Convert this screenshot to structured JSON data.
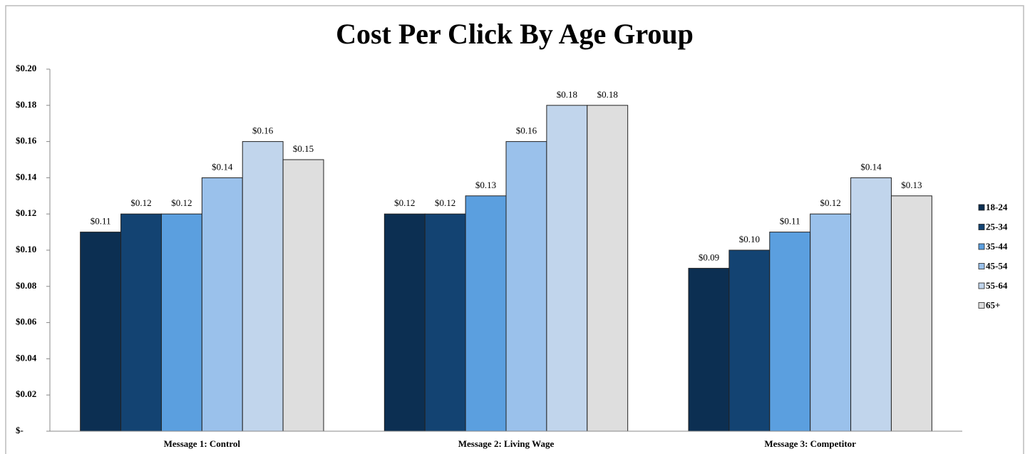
{
  "chart_data": {
    "type": "bar",
    "title": "Cost Per Click By Age Group",
    "categories": [
      "Message 1: Control",
      "Message 2: Living Wage",
      "Message 3: Competitor"
    ],
    "series": [
      {
        "name": "18-24",
        "color": "#0c2f52",
        "values": [
          0.11,
          0.12,
          0.09
        ],
        "value_labels": [
          "$0.11",
          "$0.12",
          "$0.09"
        ]
      },
      {
        "name": "25-34",
        "color": "#134372",
        "values": [
          0.12,
          0.12,
          0.1
        ],
        "value_labels": [
          "$0.12",
          "$0.12",
          "$0.10"
        ]
      },
      {
        "name": "35-44",
        "color": "#5b9fdf",
        "values": [
          0.12,
          0.13,
          0.11
        ],
        "value_labels": [
          "$0.12",
          "$0.13",
          "$0.11"
        ]
      },
      {
        "name": "45-54",
        "color": "#9ac1eb",
        "values": [
          0.14,
          0.16,
          0.12
        ],
        "value_labels": [
          "$0.14",
          "$0.16",
          "$0.12"
        ]
      },
      {
        "name": "55-64",
        "color": "#c1d5ec",
        "values": [
          0.16,
          0.18,
          0.14
        ],
        "value_labels": [
          "$0.16",
          "$0.18",
          "$0.14"
        ]
      },
      {
        "name": "65+",
        "color": "#dedede",
        "values": [
          0.15,
          0.18,
          0.13
        ],
        "value_labels": [
          "$0.15",
          "$0.18",
          "$0.13"
        ]
      }
    ],
    "ylim": [
      0,
      0.2
    ],
    "yticks": [
      {
        "value": 0,
        "label": "$-"
      },
      {
        "value": 0.02,
        "label": "$0.02"
      },
      {
        "value": 0.04,
        "label": "$0.04"
      },
      {
        "value": 0.06,
        "label": "$0.06"
      },
      {
        "value": 0.08,
        "label": "$0.08"
      },
      {
        "value": 0.1,
        "label": "$0.10"
      },
      {
        "value": 0.12,
        "label": "$0.12"
      },
      {
        "value": 0.14,
        "label": "$0.14"
      },
      {
        "value": 0.16,
        "label": "$0.16"
      },
      {
        "value": 0.18,
        "label": "$0.18"
      },
      {
        "value": 0.2,
        "label": "$0.20"
      }
    ],
    "grid": false,
    "legend": "right"
  }
}
